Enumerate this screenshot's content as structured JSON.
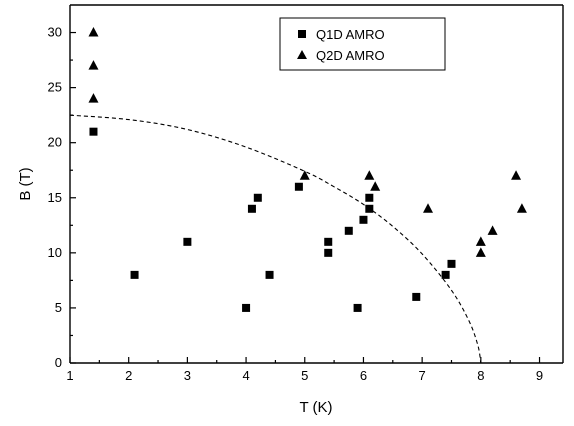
{
  "chart_data": {
    "type": "scatter",
    "title": "",
    "xlabel": "T (K)",
    "ylabel": "B (T)",
    "xlim": [
      1,
      9.4
    ],
    "ylim": [
      0,
      32.5
    ],
    "x_ticks": [
      1,
      2,
      3,
      4,
      5,
      6,
      7,
      8,
      9
    ],
    "y_ticks": [
      0,
      5,
      10,
      15,
      20,
      25,
      30
    ],
    "grid": false,
    "legend_position": "top-center",
    "series": [
      {
        "name": "Q1D AMRO",
        "marker": "square",
        "color": "#000000",
        "points": [
          [
            1.4,
            21
          ],
          [
            2.1,
            8
          ],
          [
            3.0,
            11
          ],
          [
            4.0,
            5
          ],
          [
            4.1,
            14
          ],
          [
            4.2,
            15
          ],
          [
            4.4,
            8
          ],
          [
            4.9,
            16
          ],
          [
            5.4,
            10
          ],
          [
            5.4,
            11
          ],
          [
            5.75,
            12
          ],
          [
            5.9,
            5
          ],
          [
            6.0,
            13
          ],
          [
            6.1,
            14
          ],
          [
            6.1,
            15
          ],
          [
            6.9,
            6
          ],
          [
            7.4,
            8
          ],
          [
            7.5,
            9
          ]
        ]
      },
      {
        "name": "Q2D AMRO",
        "marker": "triangle",
        "color": "#000000",
        "points": [
          [
            1.4,
            30
          ],
          [
            1.4,
            27
          ],
          [
            1.4,
            24
          ],
          [
            5.0,
            17
          ],
          [
            6.1,
            17
          ],
          [
            6.2,
            16
          ],
          [
            7.1,
            14
          ],
          [
            8.0,
            11
          ],
          [
            8.0,
            10
          ],
          [
            8.2,
            12
          ],
          [
            8.6,
            17
          ],
          [
            8.7,
            14
          ]
        ]
      }
    ],
    "boundary_curve": {
      "style": "dashed",
      "points": [
        [
          1.0,
          22.5
        ],
        [
          2.0,
          22.1
        ],
        [
          3.0,
          21.2
        ],
        [
          4.0,
          19.6
        ],
        [
          5.0,
          17.4
        ],
        [
          5.5,
          16.0
        ],
        [
          6.0,
          14.4
        ],
        [
          6.5,
          12.4
        ],
        [
          7.0,
          9.9
        ],
        [
          7.5,
          6.6
        ],
        [
          7.8,
          3.8
        ],
        [
          7.95,
          1.6
        ],
        [
          8.0,
          0
        ]
      ]
    }
  }
}
